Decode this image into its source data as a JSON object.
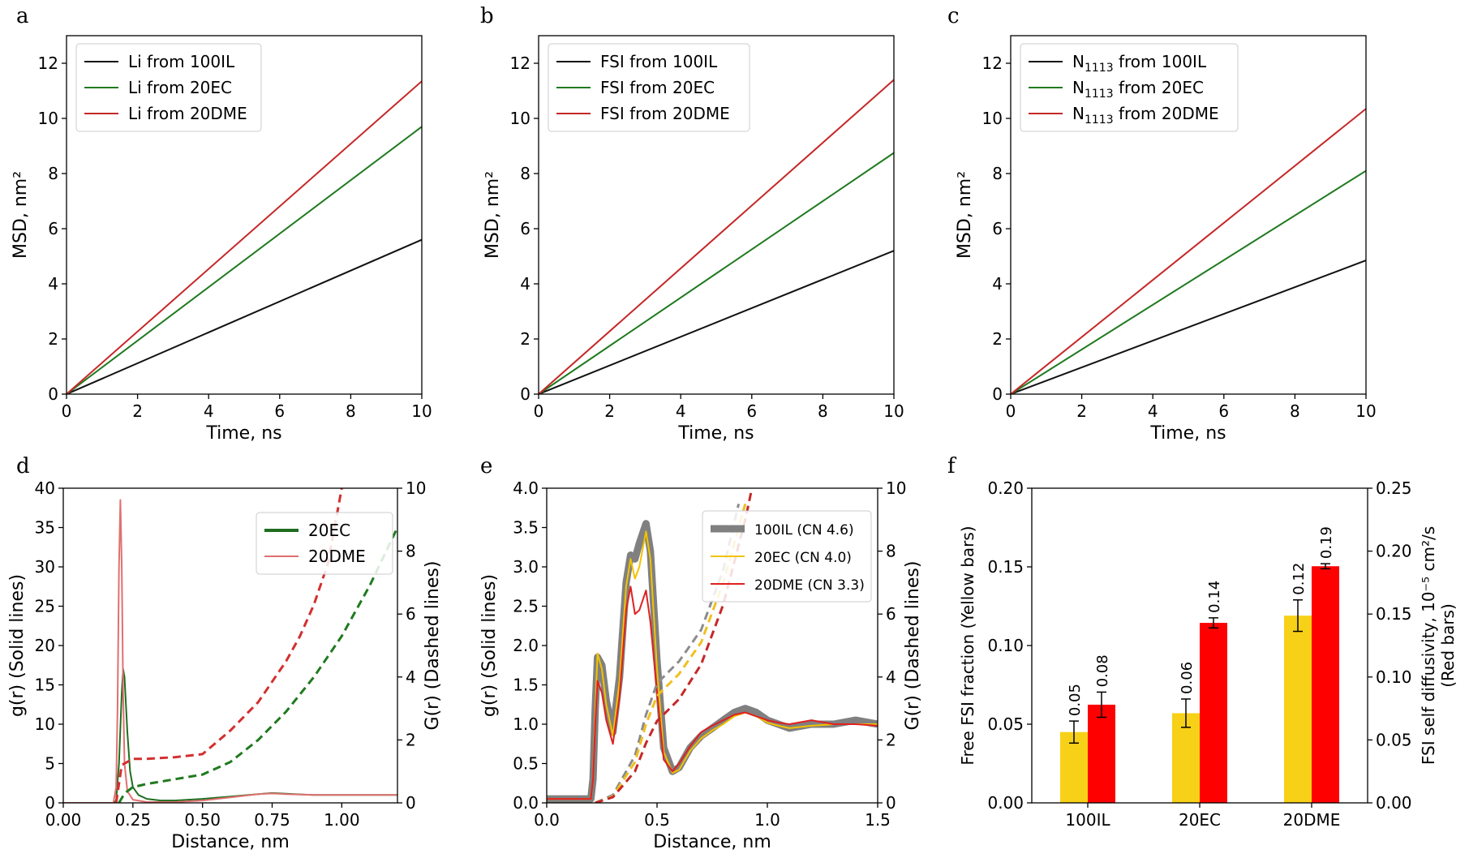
{
  "chart_data": [
    {
      "panel": "a",
      "type": "line",
      "xlabel": "Time, ns",
      "ylabel": "MSD, nm²",
      "xlim": [
        0,
        10
      ],
      "ylim": [
        0,
        13
      ],
      "xticks": [
        "0",
        "2",
        "4",
        "6",
        "8",
        "10"
      ],
      "yticks": [
        "0",
        "2",
        "4",
        "6",
        "8",
        "10",
        "12"
      ],
      "legend": "top-left",
      "series": [
        {
          "name": "Li from 100IL",
          "color": "#111111",
          "x": [
            0,
            10
          ],
          "y": [
            0,
            5.6
          ]
        },
        {
          "name": "Li from 20EC",
          "color": "#1f7a1f",
          "x": [
            0,
            10
          ],
          "y": [
            0,
            9.7
          ]
        },
        {
          "name": "Li from 20DME",
          "color": "#c62828",
          "x": [
            0,
            10
          ],
          "y": [
            0,
            11.35
          ]
        }
      ]
    },
    {
      "panel": "b",
      "type": "line",
      "xlabel": "Time, ns",
      "ylabel": "MSD, nm²",
      "xlim": [
        0,
        10
      ],
      "ylim": [
        0,
        13
      ],
      "xticks": [
        "0",
        "2",
        "4",
        "6",
        "8",
        "10"
      ],
      "yticks": [
        "0",
        "2",
        "4",
        "6",
        "8",
        "10",
        "12"
      ],
      "legend": "top-left",
      "series": [
        {
          "name": "FSI from 100IL",
          "color": "#111111",
          "x": [
            0,
            10
          ],
          "y": [
            0,
            5.2
          ]
        },
        {
          "name": "FSI from 20EC",
          "color": "#1f7a1f",
          "x": [
            0,
            10
          ],
          "y": [
            0,
            8.75
          ]
        },
        {
          "name": "FSI from 20DME",
          "color": "#c62828",
          "x": [
            0,
            10
          ],
          "y": [
            0,
            11.4
          ]
        }
      ]
    },
    {
      "panel": "c",
      "type": "line",
      "xlabel": "Time, ns",
      "ylabel": "MSD, nm²",
      "xlim": [
        0,
        10
      ],
      "ylim": [
        0,
        13
      ],
      "xticks": [
        "0",
        "2",
        "4",
        "6",
        "8",
        "10"
      ],
      "yticks": [
        "0",
        "2",
        "4",
        "6",
        "8",
        "10",
        "12"
      ],
      "legend": "top-left",
      "series": [
        {
          "name": "N1113 from 100IL",
          "color": "#111111",
          "x": [
            0,
            10
          ],
          "y": [
            0,
            4.85
          ]
        },
        {
          "name": "N1113 from 20EC",
          "color": "#1f7a1f",
          "x": [
            0,
            10
          ],
          "y": [
            0,
            8.1
          ]
        },
        {
          "name": "N1113 from 20DME",
          "color": "#c62828",
          "x": [
            0,
            10
          ],
          "y": [
            0,
            10.35
          ]
        }
      ]
    },
    {
      "panel": "d",
      "type": "line",
      "xlabel": "Distance, nm",
      "ylabel": "g(r) (Solid lines)",
      "y2label": "G(r) (Dashed lines)",
      "xlim": [
        0,
        1.2
      ],
      "ylim": [
        0,
        40
      ],
      "y2lim": [
        0,
        10
      ],
      "xticks": [
        "0.00",
        "0.25",
        "0.50",
        "0.75",
        "1.00"
      ],
      "yticks": [
        "0",
        "5",
        "10",
        "15",
        "20",
        "25",
        "30",
        "35",
        "40"
      ],
      "y2ticks": [
        "0",
        "2",
        "4",
        "6",
        "8",
        "10"
      ],
      "legend": "top-right",
      "series": [
        {
          "name": "20EC",
          "color": "#1f6e1f",
          "style": "solid",
          "x": [
            0,
            0.18,
            0.19,
            0.2,
            0.21,
            0.215,
            0.22,
            0.23,
            0.24,
            0.25,
            0.27,
            0.3,
            0.35,
            0.4,
            0.5,
            0.6,
            0.7,
            0.75,
            0.8,
            0.9,
            1.0,
            1.1,
            1.2
          ],
          "y": [
            0,
            0,
            0.3,
            5,
            14,
            17,
            16,
            9,
            4,
            2,
            1,
            0.5,
            0.3,
            0.3,
            0.5,
            0.8,
            1.1,
            1.25,
            1.15,
            1.0,
            1.0,
            1.0,
            1.0
          ]
        },
        {
          "name": "20DME",
          "color": "#e07070",
          "style": "solid",
          "x": [
            0,
            0.18,
            0.19,
            0.195,
            0.2,
            0.205,
            0.21,
            0.215,
            0.22,
            0.23,
            0.25,
            0.3,
            0.4,
            0.5,
            0.6,
            0.7,
            0.75,
            0.8,
            0.9,
            1.0,
            1.1,
            1.2
          ],
          "y": [
            0,
            0,
            2,
            12,
            30,
            38.5,
            30,
            14,
            5,
            1.5,
            0.4,
            0.1,
            0.1,
            0.3,
            0.7,
            1.1,
            1.2,
            1.1,
            1.0,
            1.0,
            1.0,
            1.0
          ]
        },
        {
          "name": "",
          "color": "#1f7a1f",
          "style": "dashed",
          "axis": "right",
          "x": [
            0.2,
            0.22,
            0.25,
            0.3,
            0.4,
            0.5,
            0.6,
            0.7,
            0.8,
            0.9,
            1.0,
            1.1,
            1.2
          ],
          "y": [
            0,
            0.3,
            0.5,
            0.6,
            0.75,
            0.9,
            1.3,
            2.0,
            2.9,
            4.0,
            5.3,
            6.9,
            8.75
          ]
        },
        {
          "name": "",
          "color": "#d32f2f",
          "style": "dashed",
          "axis": "right",
          "x": [
            0.19,
            0.21,
            0.25,
            0.3,
            0.4,
            0.5,
            0.6,
            0.7,
            0.8,
            0.85,
            0.9,
            0.95,
            1.0
          ],
          "y": [
            0,
            1.2,
            1.4,
            1.4,
            1.45,
            1.55,
            2.3,
            3.2,
            4.5,
            5.3,
            6.3,
            7.6,
            10
          ]
        }
      ]
    },
    {
      "panel": "e",
      "type": "line",
      "xlabel": "Distance, nm",
      "ylabel": "g(r) (Solid lines)",
      "y2label": "G(r) (Dashed lines)",
      "xlim": [
        0,
        1.5
      ],
      "ylim": [
        0,
        4
      ],
      "y2lim": [
        0,
        10
      ],
      "xticks": [
        "0.0",
        "0.5",
        "1.0",
        "1.5"
      ],
      "yticks": [
        "0.0",
        "0.5",
        "1.0",
        "1.5",
        "2.0",
        "2.5",
        "3.0",
        "3.5",
        "4.0"
      ],
      "y2ticks": [
        "0",
        "2",
        "4",
        "6",
        "8",
        "10"
      ],
      "legend": "top-right",
      "series": [
        {
          "name": "100IL (CN 4.6)",
          "color": "#808080",
          "style": "thick",
          "x": [
            0,
            0.2,
            0.21,
            0.22,
            0.23,
            0.25,
            0.27,
            0.3,
            0.33,
            0.36,
            0.38,
            0.4,
            0.42,
            0.45,
            0.47,
            0.5,
            0.53,
            0.57,
            0.6,
            0.65,
            0.7,
            0.75,
            0.8,
            0.85,
            0.9,
            0.95,
            1.0,
            1.05,
            1.1,
            1.2,
            1.3,
            1.4,
            1.5
          ],
          "y": [
            0.05,
            0.05,
            0.3,
            1.2,
            1.85,
            1.75,
            1.3,
            0.9,
            1.6,
            2.8,
            3.15,
            3.1,
            3.3,
            3.55,
            3.2,
            1.8,
            0.7,
            0.4,
            0.45,
            0.7,
            0.85,
            0.95,
            1.05,
            1.15,
            1.2,
            1.15,
            1.05,
            1.0,
            0.95,
            1.0,
            1.0,
            1.05,
            1.0
          ]
        },
        {
          "name": "20EC (CN 4.0)",
          "color": "#f2c300",
          "style": "solid",
          "x": [
            0,
            0.2,
            0.21,
            0.22,
            0.23,
            0.25,
            0.27,
            0.3,
            0.33,
            0.36,
            0.38,
            0.4,
            0.42,
            0.45,
            0.47,
            0.5,
            0.53,
            0.57,
            0.6,
            0.65,
            0.7,
            0.75,
            0.8,
            0.85,
            0.9,
            0.95,
            1.0,
            1.05,
            1.1,
            1.2,
            1.3,
            1.4,
            1.5
          ],
          "y": [
            0.05,
            0.05,
            0.3,
            1.15,
            1.9,
            1.7,
            1.25,
            0.85,
            1.55,
            2.75,
            3.1,
            2.85,
            3.0,
            3.45,
            3.1,
            1.7,
            0.65,
            0.38,
            0.42,
            0.66,
            0.82,
            0.92,
            1.0,
            1.1,
            1.15,
            1.1,
            1.02,
            0.98,
            0.95,
            0.98,
            1.0,
            1.0,
            1.0
          ]
        },
        {
          "name": "20DME (CN 3.3)",
          "color": "#e02020",
          "style": "solid",
          "x": [
            0,
            0.2,
            0.21,
            0.22,
            0.23,
            0.25,
            0.27,
            0.3,
            0.33,
            0.36,
            0.38,
            0.4,
            0.42,
            0.45,
            0.47,
            0.5,
            0.53,
            0.57,
            0.6,
            0.65,
            0.7,
            0.75,
            0.8,
            0.85,
            0.9,
            0.95,
            1.0,
            1.05,
            1.1,
            1.2,
            1.3,
            1.4,
            1.5
          ],
          "y": [
            0.05,
            0.05,
            0.3,
            1.0,
            1.55,
            1.4,
            1.05,
            0.75,
            1.35,
            2.45,
            2.75,
            2.4,
            2.45,
            2.7,
            2.3,
            1.4,
            0.55,
            0.4,
            0.5,
            0.72,
            0.9,
            0.98,
            1.05,
            1.12,
            1.15,
            1.1,
            1.05,
            1.02,
            1.0,
            1.05,
            1.0,
            1.0,
            0.98
          ]
        },
        {
          "name": "",
          "color": "#8c8c8c",
          "style": "dashed",
          "axis": "right",
          "x": [
            0.22,
            0.3,
            0.4,
            0.45,
            0.5,
            0.6,
            0.7,
            0.8,
            0.87
          ],
          "y": [
            0,
            0.25,
            1.5,
            2.8,
            3.8,
            4.5,
            5.5,
            7.4,
            9.5
          ]
        },
        {
          "name": "",
          "color": "#f0c020",
          "style": "dashed",
          "axis": "right",
          "x": [
            0.22,
            0.3,
            0.4,
            0.45,
            0.5,
            0.6,
            0.7,
            0.8,
            0.9
          ],
          "y": [
            0,
            0.2,
            1.3,
            2.5,
            3.4,
            4.1,
            5.1,
            7.0,
            9.5
          ]
        },
        {
          "name": "",
          "color": "#c62828",
          "style": "dashed",
          "axis": "right",
          "x": [
            0.22,
            0.3,
            0.4,
            0.45,
            0.5,
            0.6,
            0.7,
            0.8,
            0.9,
            0.93
          ],
          "y": [
            0,
            0.18,
            1.0,
            1.9,
            2.6,
            3.3,
            4.4,
            6.3,
            9.0,
            10
          ]
        }
      ]
    },
    {
      "panel": "f",
      "type": "bar",
      "categories": [
        "100IL",
        "20EC",
        "20DME"
      ],
      "ylabel": "Free FSI fraction (Yellow bars)",
      "y2label": "FSI self diffusivity, 10⁻⁵ cm²/s (Red bars)",
      "ylim": [
        0,
        0.2
      ],
      "y2lim": [
        0,
        0.25
      ],
      "yticks": [
        "0.00",
        "0.05",
        "0.10",
        "0.15",
        "0.20"
      ],
      "y2ticks": [
        "0.00",
        "0.05",
        "0.10",
        "0.15",
        "0.20",
        "0.25"
      ],
      "series": [
        {
          "color": "#f7d117",
          "axis": "left",
          "values": [
            0.045,
            0.057,
            0.119
          ],
          "errors": [
            0.007,
            0.009,
            0.01
          ],
          "labels": [
            "0.05",
            "0.06",
            "0.12"
          ]
        },
        {
          "color": "#ff0000",
          "axis": "right",
          "values": [
            0.078,
            0.143,
            0.188
          ],
          "errors": [
            0.01,
            0.004,
            0.002
          ],
          "labels": [
            "0.08",
            "0.14",
            "0.19"
          ]
        }
      ]
    }
  ],
  "panel_letters": [
    "a",
    "b",
    "c",
    "d",
    "e",
    "f"
  ]
}
